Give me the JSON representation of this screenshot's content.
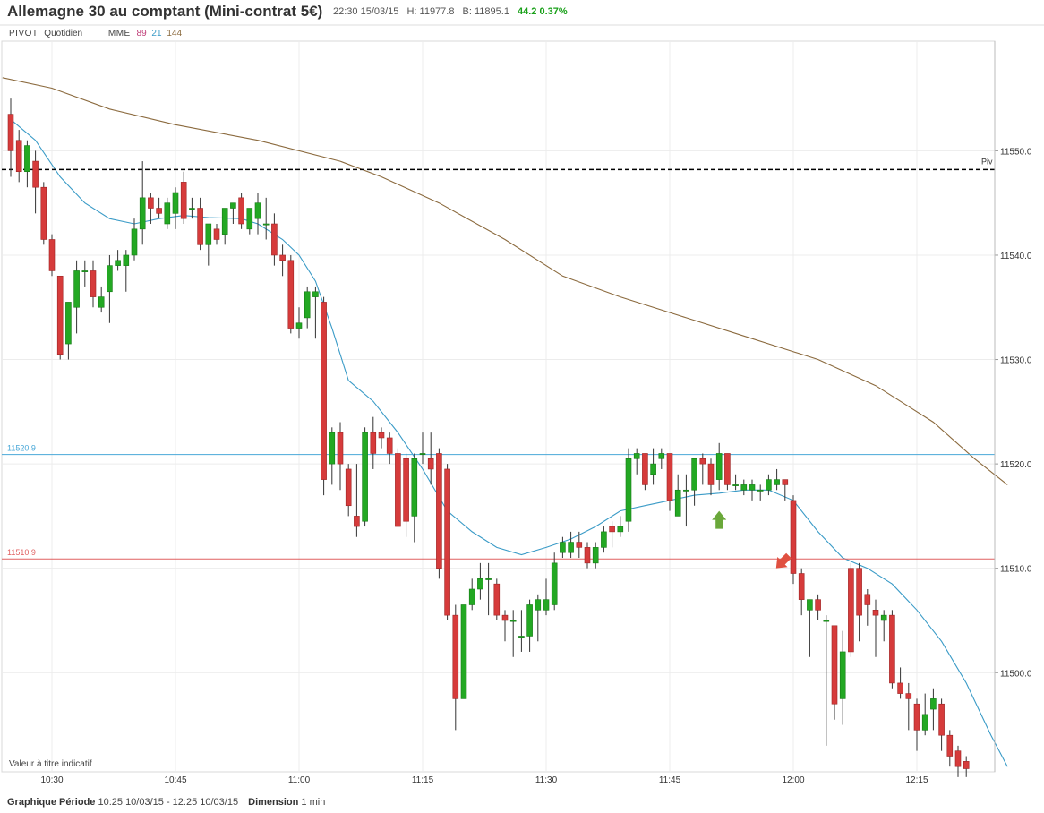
{
  "header": {
    "title": "Allemagne 30 au comptant (Mini-contrat 5€)",
    "time": "22:30 15/03/15",
    "high": "H: 11977.8",
    "bid": "B: 11895.1",
    "change": "44.2 0.37%"
  },
  "indicators": {
    "pivot_label": "PIVOT",
    "pivot_period": "Quotidien",
    "mme_label": "MME",
    "mme_periods": [
      "89",
      "21",
      "144"
    ]
  },
  "chart_note": "Valeur à titre indicatif",
  "footer": {
    "period_label": "Graphique Période",
    "period_value": "10:25 10/03/15 - 12:25 10/03/15",
    "dimension_label": "Dimension",
    "dimension_value": "1 min"
  },
  "colors": {
    "up": "#23a823",
    "down": "#d63b3b",
    "ema21": "#3a9bc7",
    "ema144": "#8b6a3e",
    "level_blue": "#4aa8d8",
    "level_red": "#e06060",
    "arrow_up": "#6aa83a",
    "arrow_down": "#e05040"
  },
  "chart_data": {
    "type": "candlestick",
    "x_axis": {
      "start": "10:25",
      "end": "12:25",
      "interval": "1 min",
      "ticks": [
        "10:30",
        "10:45",
        "11:00",
        "11:15",
        "11:30",
        "11:45",
        "12:00",
        "12:15"
      ]
    },
    "y_axis": {
      "range": [
        11490.5,
        11560.5
      ],
      "ticks": [
        11500.0,
        11510.0,
        11520.0,
        11530.0,
        11540.0,
        11550.0
      ],
      "tick_labels": [
        "11500.0",
        "11510.0",
        "11520.0",
        "11530.0",
        "11540.0",
        "11550.0"
      ],
      "position": "right"
    },
    "levels": [
      {
        "name": "Piv",
        "value": 11548.2,
        "style": "dashed",
        "color": "#000000",
        "label": "Piv"
      },
      {
        "name": "11520.9",
        "value": 11520.9,
        "color": "#4aa8d8",
        "label": "11520.9"
      },
      {
        "name": "11510.9",
        "value": 11510.9,
        "color": "#e06060",
        "label": "11510.9"
      }
    ],
    "candles": [
      [
        11553.5,
        11555.0,
        11547.5,
        11550.0
      ],
      [
        11551.0,
        11552.0,
        11547.0,
        11548.0
      ],
      [
        11548.0,
        11551.0,
        11546.5,
        11550.5
      ],
      [
        11549.0,
        11550.0,
        11544.0,
        11546.5
      ],
      [
        11546.5,
        11547.0,
        11541.0,
        11541.5
      ],
      [
        11541.5,
        11542.0,
        11538.0,
        11538.5
      ],
      [
        11538.0,
        11538.0,
        11530.0,
        11530.5
      ],
      [
        11531.5,
        11535.5,
        11530.0,
        11535.5
      ],
      [
        11535.0,
        11539.5,
        11532.5,
        11538.5
      ],
      [
        11538.5,
        11539.5,
        11537.0,
        11538.5
      ],
      [
        11538.5,
        11539.5,
        11535.0,
        11536.0
      ],
      [
        11535.0,
        11537.0,
        11534.5,
        11536.0
      ],
      [
        11536.5,
        11540.0,
        11533.5,
        11539.0
      ],
      [
        11539.0,
        11540.5,
        11538.5,
        11539.5
      ],
      [
        11539.0,
        11540.5,
        11536.5,
        11540.0
      ],
      [
        11540.0,
        11543.5,
        11539.5,
        11542.5
      ],
      [
        11542.5,
        11549.0,
        11541.0,
        11545.5
      ],
      [
        11545.5,
        11546.0,
        11543.0,
        11544.5
      ],
      [
        11544.5,
        11545.5,
        11543.5,
        11544.0
      ],
      [
        11543.0,
        11545.5,
        11542.5,
        11545.0
      ],
      [
        11544.0,
        11546.5,
        11542.5,
        11546.0
      ],
      [
        11547.0,
        11548.0,
        11543.0,
        11543.5
      ],
      [
        11544.5,
        11545.5,
        11543.5,
        11544.5
      ],
      [
        11544.5,
        11545.5,
        11540.5,
        11541.0
      ],
      [
        11541.0,
        11543.0,
        11539.0,
        11543.0
      ],
      [
        11542.5,
        11543.0,
        11541.0,
        11541.5
      ],
      [
        11542.0,
        11544.5,
        11541.0,
        11544.5
      ],
      [
        11544.5,
        11545.0,
        11543.0,
        11545.0
      ],
      [
        11545.5,
        11546.0,
        11542.5,
        11543.0
      ],
      [
        11542.5,
        11544.5,
        11542.0,
        11544.5
      ],
      [
        11543.5,
        11546.0,
        11542.0,
        11545.0
      ],
      [
        11543.0,
        11545.5,
        11541.5,
        11543.0
      ],
      [
        11543.0,
        11544.0,
        11539.0,
        11540.0
      ],
      [
        11540.0,
        11541.0,
        11538.0,
        11539.5
      ],
      [
        11539.5,
        11540.0,
        11532.5,
        11533.0
      ],
      [
        11533.0,
        11535.0,
        11532.0,
        11533.5
      ],
      [
        11534.0,
        11537.0,
        11533.0,
        11536.5
      ],
      [
        11536.0,
        11537.0,
        11532.0,
        11536.5
      ],
      [
        11535.5,
        11536.0,
        11517.0,
        11518.5
      ],
      [
        11520.0,
        11523.5,
        11518.0,
        11523.0
      ],
      [
        11523.0,
        11524.0,
        11517.5,
        11520.0
      ],
      [
        11519.5,
        11520.0,
        11515.0,
        11516.0
      ],
      [
        11515.0,
        11520.0,
        11513.0,
        11514.0
      ],
      [
        11514.5,
        11523.5,
        11514.0,
        11523.0
      ],
      [
        11523.0,
        11524.5,
        11519.5,
        11521.0
      ],
      [
        11523.0,
        11523.5,
        11521.5,
        11522.5
      ],
      [
        11522.5,
        11523.0,
        11520.0,
        11521.0
      ],
      [
        11521.0,
        11521.5,
        11514.0,
        11514.0
      ],
      [
        11520.5,
        11521.0,
        11513.0,
        11514.5
      ],
      [
        11515.0,
        11521.0,
        11512.5,
        11520.5
      ],
      [
        11521.0,
        11523.0,
        11520.0,
        11521.0
      ],
      [
        11520.5,
        11523.0,
        11518.0,
        11519.5
      ],
      [
        11521.0,
        11521.5,
        11509.0,
        11510.0
      ],
      [
        11519.5,
        11520.0,
        11505.0,
        11505.5
      ],
      [
        11505.5,
        11506.5,
        11494.5,
        11497.5
      ],
      [
        11497.5,
        11506.5,
        11497.5,
        11506.5
      ],
      [
        11506.5,
        11509.0,
        11506.0,
        11508.0
      ],
      [
        11508.0,
        11510.5,
        11507.0,
        11509.0
      ],
      [
        11509.0,
        11510.5,
        11505.5,
        11509.0
      ],
      [
        11508.5,
        11509.0,
        11505.0,
        11505.5
      ],
      [
        11505.5,
        11506.0,
        11503.0,
        11505.0
      ],
      [
        11505.0,
        11506.0,
        11501.5,
        11505.0
      ],
      [
        11503.5,
        11506.0,
        11502.0,
        11503.5
      ],
      [
        11503.5,
        11507.0,
        11502.0,
        11506.5
      ],
      [
        11506.0,
        11507.5,
        11503.0,
        11507.0
      ],
      [
        11506.0,
        11509.0,
        11505.5,
        11507.0
      ],
      [
        11506.5,
        11511.5,
        11506.0,
        11510.5
      ],
      [
        11511.5,
        11513.0,
        11511.0,
        11512.5
      ],
      [
        11511.5,
        11513.5,
        11511.0,
        11512.5
      ],
      [
        11512.5,
        11513.5,
        11511.0,
        11512.0
      ],
      [
        11512.0,
        11512.5,
        11510.0,
        11510.5
      ],
      [
        11510.5,
        11512.5,
        11510.0,
        11512.0
      ],
      [
        11512.0,
        11514.0,
        11511.5,
        11513.5
      ],
      [
        11514.0,
        11514.5,
        11512.0,
        11513.5
      ],
      [
        11513.5,
        11515.0,
        11513.0,
        11514.0
      ],
      [
        11514.5,
        11521.5,
        11513.5,
        11520.5
      ],
      [
        11520.5,
        11521.5,
        11519.0,
        11521.0
      ],
      [
        11521.0,
        11521.0,
        11517.5,
        11518.0
      ],
      [
        11519.0,
        11521.5,
        11518.0,
        11520.0
      ],
      [
        11520.5,
        11521.5,
        11519.5,
        11521.0
      ],
      [
        11521.0,
        11521.0,
        11515.5,
        11516.5
      ],
      [
        11515.0,
        11519.0,
        11515.0,
        11517.5
      ],
      [
        11517.5,
        11519.0,
        11514.0,
        11517.5
      ],
      [
        11517.5,
        11520.5,
        11516.0,
        11520.5
      ],
      [
        11520.5,
        11521.0,
        11518.0,
        11520.0
      ],
      [
        11520.0,
        11520.5,
        11517.0,
        11518.0
      ],
      [
        11518.5,
        11522.0,
        11517.5,
        11521.0
      ],
      [
        11521.0,
        11521.0,
        11517.5,
        11518.0
      ],
      [
        11518.0,
        11519.0,
        11517.5,
        11518.0
      ],
      [
        11517.5,
        11518.5,
        11517.0,
        11518.0
      ],
      [
        11517.5,
        11518.5,
        11516.5,
        11518.0
      ],
      [
        11517.5,
        11518.0,
        11516.5,
        11517.5
      ],
      [
        11517.5,
        11519.0,
        11517.0,
        11518.5
      ],
      [
        11518.0,
        11519.5,
        11517.5,
        11518.5
      ],
      [
        11518.5,
        11518.5,
        11516.5,
        11518.0
      ],
      [
        11516.5,
        11517.0,
        11508.5,
        11509.5
      ],
      [
        11509.5,
        11510.0,
        11505.5,
        11507.0
      ],
      [
        11506.0,
        11507.0,
        11501.5,
        11507.0
      ],
      [
        11507.0,
        11507.5,
        11505.0,
        11506.0
      ],
      [
        11505.0,
        11505.5,
        11493.0,
        11505.0
      ],
      [
        11504.5,
        11504.5,
        11495.5,
        11497.0
      ],
      [
        11497.5,
        11504.0,
        11495.0,
        11502.0
      ],
      [
        11510.0,
        11510.5,
        11501.5,
        11502.0
      ],
      [
        11510.0,
        11510.5,
        11503.0,
        11505.5
      ],
      [
        11507.5,
        11508.0,
        11504.5,
        11506.5
      ],
      [
        11506.0,
        11507.0,
        11501.5,
        11505.5
      ],
      [
        11505.0,
        11506.0,
        11503.0,
        11505.5
      ],
      [
        11505.5,
        11506.0,
        11498.5,
        11499.0
      ],
      [
        11499.0,
        11500.5,
        11497.5,
        11498.0
      ],
      [
        11498.0,
        11499.0,
        11494.5,
        11497.5
      ],
      [
        11497.0,
        11497.5,
        11492.5,
        11494.5
      ],
      [
        11494.5,
        11498.0,
        11494.0,
        11496.0
      ],
      [
        11496.5,
        11498.5,
        11494.5,
        11497.5
      ],
      [
        11497.0,
        11497.5,
        11492.5,
        11494.0
      ],
      [
        11494.0,
        11494.5,
        11491.0,
        11492.0
      ],
      [
        11492.5,
        11493.0,
        11490.0,
        11491.0
      ],
      [
        11491.5,
        11492.0,
        11490.0,
        11490.8
      ]
    ],
    "ema21": [
      [
        0,
        11553.0
      ],
      [
        3,
        11551.0
      ],
      [
        6,
        11547.5
      ],
      [
        9,
        11545.0
      ],
      [
        12,
        11543.5
      ],
      [
        15,
        11543.0
      ],
      [
        18,
        11543.5
      ],
      [
        21,
        11543.8
      ],
      [
        24,
        11543.6
      ],
      [
        28,
        11543.5
      ],
      [
        30,
        11543.0
      ],
      [
        33,
        11541.5
      ],
      [
        35,
        11540.0
      ],
      [
        37,
        11537.5
      ],
      [
        39,
        11533.0
      ],
      [
        41,
        11528.0
      ],
      [
        44,
        11526.0
      ],
      [
        47,
        11523.0
      ],
      [
        50,
        11519.5
      ],
      [
        53,
        11515.5
      ],
      [
        56,
        11513.5
      ],
      [
        59,
        11512.0
      ],
      [
        62,
        11511.3
      ],
      [
        65,
        11512.0
      ],
      [
        68,
        11512.8
      ],
      [
        71,
        11514.0
      ],
      [
        74,
        11515.5
      ],
      [
        77,
        11516.0
      ],
      [
        80,
        11516.5
      ],
      [
        83,
        11517.0
      ],
      [
        86,
        11517.2
      ],
      [
        89,
        11517.5
      ],
      [
        92,
        11517.5
      ],
      [
        95,
        11516.5
      ],
      [
        98,
        11513.5
      ],
      [
        101,
        11511.0
      ],
      [
        104,
        11510.0
      ],
      [
        107,
        11508.5
      ],
      [
        110,
        11506.0
      ],
      [
        113,
        11503.0
      ],
      [
        116,
        11499.0
      ],
      [
        119,
        11494.0
      ],
      [
        121,
        11491.0
      ]
    ],
    "ema144": [
      [
        -1,
        11557.0
      ],
      [
        5,
        11556.0
      ],
      [
        12,
        11554.0
      ],
      [
        20,
        11552.5
      ],
      [
        30,
        11551.0
      ],
      [
        40,
        11549.0
      ],
      [
        45,
        11547.5
      ],
      [
        52,
        11545.0
      ],
      [
        60,
        11541.5
      ],
      [
        67,
        11538.0
      ],
      [
        74,
        11536.0
      ],
      [
        82,
        11534.0
      ],
      [
        90,
        11532.0
      ],
      [
        98,
        11530.0
      ],
      [
        105,
        11527.5
      ],
      [
        112,
        11524.0
      ],
      [
        117,
        11520.5
      ],
      [
        121,
        11518.0
      ]
    ],
    "annotations": [
      {
        "type": "arrow",
        "direction": "up",
        "candle": 86,
        "value": 11515.5,
        "color": "#6aa83a"
      },
      {
        "type": "arrow",
        "direction": "down",
        "candle": 94,
        "value": 11510.0,
        "color": "#e05040"
      }
    ]
  }
}
